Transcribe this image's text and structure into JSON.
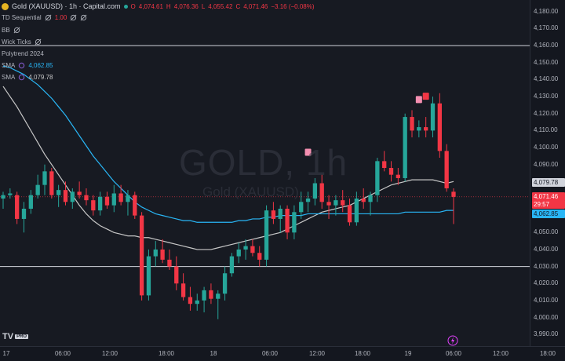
{
  "symbol": {
    "title": "Gold (XAUUSD) · 1h · Capital.com",
    "ohlc": {
      "o_label": "O",
      "o": "4,074.61",
      "h_label": "H",
      "h": "4,076.36",
      "l_label": "L",
      "l": "4,055.42",
      "c_label": "C",
      "c": "4,071.46",
      "change": "−3.16 (−0.08%)"
    }
  },
  "indicators": {
    "td": "TD Sequential",
    "td_value": "1.00",
    "bb": "BB",
    "wick": "Wick Ticks",
    "polytrend": "Polytrend 2024",
    "sma1_label": "SMA",
    "sma1_value": "4,062.85",
    "sma2_label": "SMA",
    "sma2_value": "4,079.78"
  },
  "watermark": {
    "main": "GOLD, 1h",
    "sub": "Gold (XAUUSD)"
  },
  "price_axis": {
    "ticks": [
      "4,180.00",
      "4,170.00",
      "4,160.00",
      "4,150.00",
      "4,140.00",
      "4,130.00",
      "4,120.00",
      "4,110.00",
      "4,100.00",
      "4,090.00",
      "4,080.00",
      "4,070.00",
      "4,060.00",
      "4,050.00",
      "4,040.00",
      "4,030.00",
      "4,020.00",
      "4,010.00",
      "4,000.00",
      "3,990.00"
    ],
    "tick_values": [
      4180,
      4170,
      4160,
      4150,
      4140,
      4130,
      4120,
      4110,
      4100,
      4090,
      4080,
      4070,
      4060,
      4050,
      4040,
      4030,
      4020,
      4010,
      4000,
      3990
    ],
    "badges": {
      "sma_high": "4,079.78",
      "last": "4,071.46",
      "countdown": "29:57",
      "sma_low": "4,062.85"
    }
  },
  "time_axis": {
    "labels": [
      "17",
      "06:00",
      "12:00",
      "18:00",
      "18",
      "06:00",
      "12:00",
      "18:00",
      "19",
      "06:00",
      "12:00",
      "18:00"
    ]
  },
  "hlines": [
    4160,
    4030
  ],
  "colors": {
    "up": "#26a69a",
    "down": "#f23645",
    "sma_blue": "#29b6f6",
    "sma_white": "#c8c8c8",
    "bg": "#171a22"
  },
  "logo": {
    "text": "TV",
    "badge": "PRO"
  },
  "chart_data": {
    "type": "candlestick",
    "ylim": [
      3985,
      4185
    ],
    "candles": [
      {
        "o": 4070,
        "h": 4074,
        "l": 4064,
        "c": 4072
      },
      {
        "o": 4072,
        "h": 4076,
        "l": 4070,
        "c": 4073
      },
      {
        "o": 4072,
        "h": 4074,
        "l": 4055,
        "c": 4058
      },
      {
        "o": 4058,
        "h": 4068,
        "l": 4050,
        "c": 4064
      },
      {
        "o": 4064,
        "h": 4075,
        "l": 4061,
        "c": 4072
      },
      {
        "o": 4072,
        "h": 4084,
        "l": 4070,
        "c": 4078
      },
      {
        "o": 4078,
        "h": 4090,
        "l": 4072,
        "c": 4086
      },
      {
        "o": 4086,
        "h": 4088,
        "l": 4070,
        "c": 4072
      },
      {
        "o": 4072,
        "h": 4078,
        "l": 4065,
        "c": 4075
      },
      {
        "o": 4075,
        "h": 4080,
        "l": 4066,
        "c": 4068
      },
      {
        "o": 4068,
        "h": 4076,
        "l": 4064,
        "c": 4074
      },
      {
        "o": 4074,
        "h": 4080,
        "l": 4070,
        "c": 4072
      },
      {
        "o": 4072,
        "h": 4076,
        "l": 4066,
        "c": 4069
      },
      {
        "o": 4069,
        "h": 4072,
        "l": 4060,
        "c": 4063
      },
      {
        "o": 4063,
        "h": 4074,
        "l": 4060,
        "c": 4071
      },
      {
        "o": 4071,
        "h": 4074,
        "l": 4064,
        "c": 4066
      },
      {
        "o": 4066,
        "h": 4078,
        "l": 4062,
        "c": 4073
      },
      {
        "o": 4073,
        "h": 4078,
        "l": 4066,
        "c": 4068
      },
      {
        "o": 4068,
        "h": 4075,
        "l": 4060,
        "c": 4072
      },
      {
        "o": 4072,
        "h": 4074,
        "l": 4058,
        "c": 4060
      },
      {
        "o": 4060,
        "h": 4062,
        "l": 4010,
        "c": 4013
      },
      {
        "o": 4013,
        "h": 4040,
        "l": 4010,
        "c": 4036
      },
      {
        "o": 4036,
        "h": 4045,
        "l": 4030,
        "c": 4040
      },
      {
        "o": 4040,
        "h": 4046,
        "l": 4032,
        "c": 4034
      },
      {
        "o": 4034,
        "h": 4040,
        "l": 4028,
        "c": 4030
      },
      {
        "o": 4030,
        "h": 4036,
        "l": 4016,
        "c": 4020
      },
      {
        "o": 4020,
        "h": 4026,
        "l": 4010,
        "c": 4012
      },
      {
        "o": 4012,
        "h": 4018,
        "l": 4004,
        "c": 4008
      },
      {
        "o": 4008,
        "h": 4014,
        "l": 4004,
        "c": 4010
      },
      {
        "o": 4010,
        "h": 4018,
        "l": 4003,
        "c": 4016
      },
      {
        "o": 4016,
        "h": 4020,
        "l": 4008,
        "c": 4011
      },
      {
        "o": 4011,
        "h": 4016,
        "l": 3999,
        "c": 4014
      },
      {
        "o": 4014,
        "h": 4030,
        "l": 4010,
        "c": 4026
      },
      {
        "o": 4026,
        "h": 4038,
        "l": 4024,
        "c": 4036
      },
      {
        "o": 4036,
        "h": 4044,
        "l": 4032,
        "c": 4040
      },
      {
        "o": 4040,
        "h": 4046,
        "l": 4034,
        "c": 4042
      },
      {
        "o": 4042,
        "h": 4046,
        "l": 4036,
        "c": 4038
      },
      {
        "o": 4038,
        "h": 4042,
        "l": 4030,
        "c": 4034
      },
      {
        "o": 4034,
        "h": 4066,
        "l": 4030,
        "c": 4063
      },
      {
        "o": 4063,
        "h": 4068,
        "l": 4055,
        "c": 4058
      },
      {
        "o": 4058,
        "h": 4066,
        "l": 4050,
        "c": 4064
      },
      {
        "o": 4064,
        "h": 4066,
        "l": 4046,
        "c": 4050
      },
      {
        "o": 4050,
        "h": 4066,
        "l": 4046,
        "c": 4062
      },
      {
        "o": 4062,
        "h": 4074,
        "l": 4058,
        "c": 4068
      },
      {
        "o": 4068,
        "h": 4074,
        "l": 4062,
        "c": 4070
      },
      {
        "o": 4070,
        "h": 4082,
        "l": 4066,
        "c": 4079
      },
      {
        "o": 4079,
        "h": 4084,
        "l": 4064,
        "c": 4068
      },
      {
        "o": 4068,
        "h": 4072,
        "l": 4058,
        "c": 4066
      },
      {
        "o": 4066,
        "h": 4072,
        "l": 4060,
        "c": 4069
      },
      {
        "o": 4069,
        "h": 4075,
        "l": 4062,
        "c": 4066
      },
      {
        "o": 4066,
        "h": 4070,
        "l": 4054,
        "c": 4056
      },
      {
        "o": 4056,
        "h": 4074,
        "l": 4054,
        "c": 4070
      },
      {
        "o": 4070,
        "h": 4076,
        "l": 4064,
        "c": 4068
      },
      {
        "o": 4068,
        "h": 4074,
        "l": 4060,
        "c": 4072
      },
      {
        "o": 4072,
        "h": 4094,
        "l": 4068,
        "c": 4092
      },
      {
        "o": 4092,
        "h": 4098,
        "l": 4086,
        "c": 4088
      },
      {
        "o": 4088,
        "h": 4092,
        "l": 4080,
        "c": 4084
      },
      {
        "o": 4084,
        "h": 4088,
        "l": 4078,
        "c": 4082
      },
      {
        "o": 4082,
        "h": 4120,
        "l": 4080,
        "c": 4118
      },
      {
        "o": 4118,
        "h": 4122,
        "l": 4106,
        "c": 4110
      },
      {
        "o": 4110,
        "h": 4116,
        "l": 4106,
        "c": 4112
      },
      {
        "o": 4112,
        "h": 4118,
        "l": 4106,
        "c": 4110
      },
      {
        "o": 4110,
        "h": 4130,
        "l": 4106,
        "c": 4126
      },
      {
        "o": 4126,
        "h": 4132,
        "l": 4094,
        "c": 4098
      },
      {
        "o": 4098,
        "h": 4102,
        "l": 4074,
        "c": 4076
      },
      {
        "o": 4074,
        "h": 4076,
        "l": 4055,
        "c": 4071
      }
    ],
    "sma_blue": [
      4148,
      4147,
      4145,
      4143,
      4140,
      4137,
      4133,
      4129,
      4124,
      4119,
      4113,
      4107,
      4101,
      4095,
      4090,
      4085,
      4080,
      4076,
      4072,
      4068,
      4065,
      4063,
      4061,
      4060,
      4059,
      4058,
      4057,
      4057,
      4056,
      4056,
      4056,
      4056,
      4056,
      4056,
      4057,
      4057,
      4058,
      4058,
      4059,
      4059,
      4060,
      4060,
      4060,
      4060,
      4061,
      4061,
      4061,
      4061,
      4061,
      4061,
      4061,
      4061,
      4061,
      4061,
      4061,
      4061,
      4061,
      4061,
      4062,
      4062,
      4062,
      4062,
      4062,
      4062,
      4063,
      4063
    ],
    "sma_white": [
      4136,
      4130,
      4124,
      4117,
      4110,
      4103,
      4096,
      4090,
      4084,
      4078,
      4072,
      4066,
      4061,
      4057,
      4054,
      4052,
      4050,
      4049,
      4048,
      4048,
      4047,
      4047,
      4046,
      4045,
      4044,
      4043,
      4042,
      4041,
      4040,
      4040,
      4040,
      4041,
      4042,
      4043,
      4044,
      4045,
      4046,
      4047,
      4048,
      4049,
      4050,
      4052,
      4054,
      4056,
      4058,
      4060,
      4062,
      4063,
      4064,
      4065,
      4066,
      4068,
      4070,
      4072,
      4074,
      4076,
      4078,
      4079,
      4080,
      4081,
      4081,
      4081,
      4081,
      4080,
      4079,
      4080
    ]
  }
}
